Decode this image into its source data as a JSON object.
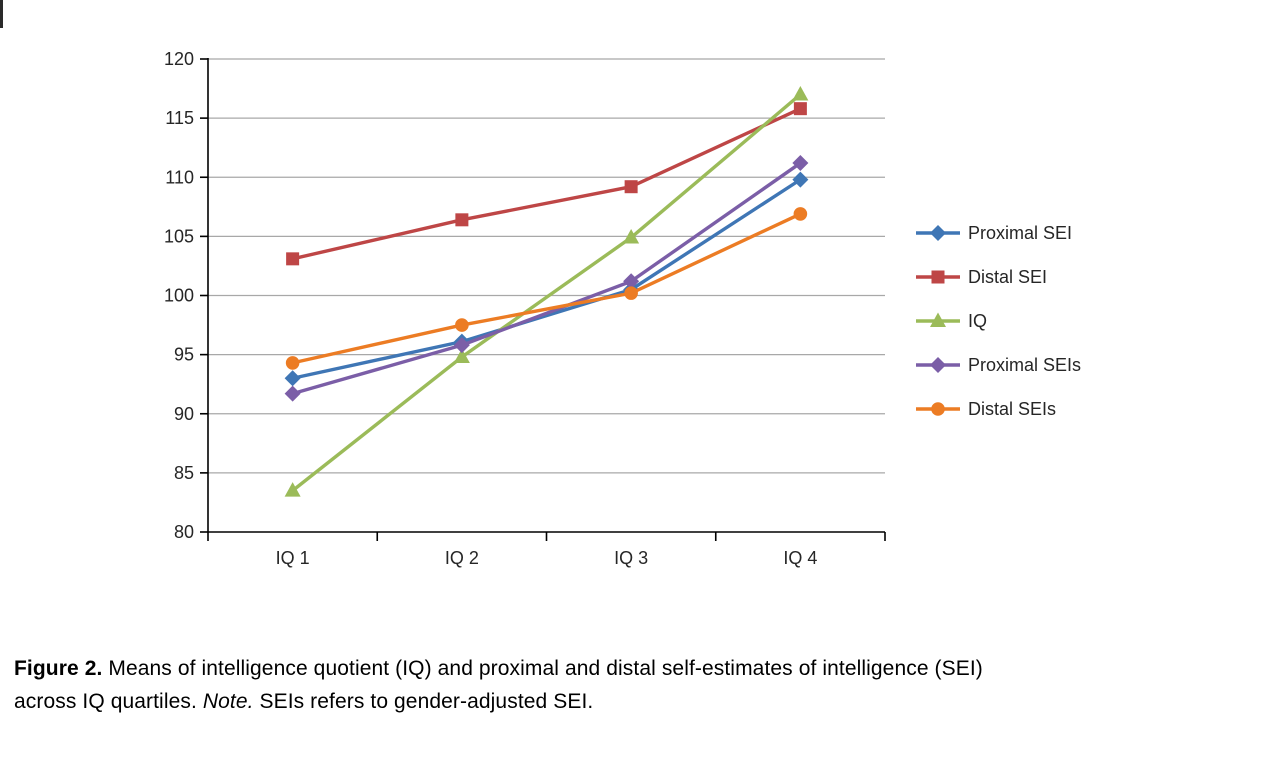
{
  "chart_data": {
    "type": "line",
    "categories": [
      "IQ 1",
      "IQ 2",
      "IQ 3",
      "IQ 4"
    ],
    "series": [
      {
        "name": "Proximal SEI",
        "color": "#3F76B5",
        "marker": "diamond",
        "values": [
          93.0,
          96.1,
          100.5,
          109.8
        ]
      },
      {
        "name": "Distal SEI",
        "color": "#BE4646",
        "marker": "square",
        "values": [
          103.1,
          106.4,
          109.2,
          115.8
        ]
      },
      {
        "name": "IQ",
        "color": "#9BBB59",
        "marker": "triangle",
        "values": [
          83.5,
          94.8,
          104.9,
          117.0
        ]
      },
      {
        "name": "Proximal SEIs",
        "color": "#7B5EA7",
        "marker": "diamond",
        "values": [
          91.7,
          95.8,
          101.2,
          111.2
        ]
      },
      {
        "name": "Distal SEIs",
        "color": "#EC7C24",
        "marker": "circle",
        "values": [
          94.3,
          97.5,
          100.2,
          106.9
        ]
      }
    ],
    "ylim": [
      80,
      120
    ],
    "ytick_step": 5,
    "grid": true,
    "gridline_color": "#a8a8a8",
    "axis_color": "#000000",
    "legend_position": "right"
  },
  "caption": {
    "label": "Figure 2.",
    "line1": "Means of intelligence quotient (IQ) and proximal and distal self-estimates of intelligence (SEI)",
    "line2_prefix": "across IQ quartiles.",
    "note_label": "Note.",
    "note_text": "SEIs refers to gender-adjusted SEI."
  }
}
